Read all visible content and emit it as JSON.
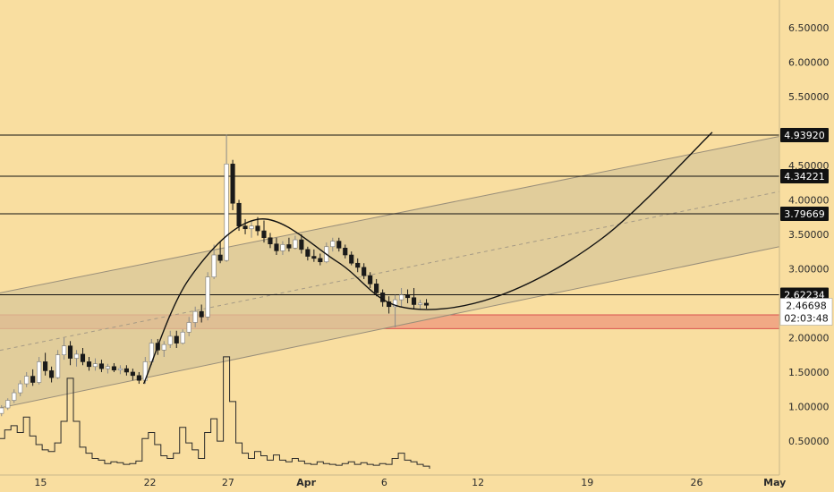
{
  "chart_data": {
    "type": "candlestick",
    "y_axis": {
      "ticks": [
        {
          "value": 0.5,
          "label": "0.50000"
        },
        {
          "value": 1.0,
          "label": "1.00000"
        },
        {
          "value": 1.5,
          "label": "1.50000"
        },
        {
          "value": 2.0,
          "label": "2.00000"
        },
        {
          "value": 3.0,
          "label": "3.00000"
        },
        {
          "value": 3.5,
          "label": "3.50000"
        },
        {
          "value": 4.0,
          "label": "4.00000"
        },
        {
          "value": 4.5,
          "label": "4.50000"
        },
        {
          "value": 5.5,
          "label": "5.50000"
        },
        {
          "value": 6.0,
          "label": "6.00000"
        },
        {
          "value": 6.5,
          "label": "6.50000"
        }
      ],
      "range": [
        0.0,
        6.9
      ],
      "position": "right"
    },
    "x_axis": {
      "ticks": [
        {
          "day": 15,
          "label": "15",
          "month_label": false
        },
        {
          "day": 22,
          "label": "22",
          "month_label": false
        },
        {
          "day": 27,
          "label": "27",
          "month_label": false
        },
        {
          "day": 32,
          "label": "Apr",
          "month_label": true
        },
        {
          "day": 37,
          "label": "6",
          "month_label": false
        },
        {
          "day": 43,
          "label": "12",
          "month_label": false
        },
        {
          "day": 50,
          "label": "19",
          "month_label": false
        },
        {
          "day": 57,
          "label": "26",
          "month_label": false
        },
        {
          "day": 62,
          "label": "May",
          "month_label": true
        }
      ],
      "range": [
        12.4,
        62.3
      ],
      "note": "day numbers counted from March 1"
    },
    "price_levels": [
      {
        "value": 4.9392,
        "label": "4.93920"
      },
      {
        "value": 4.34221,
        "label": "4.34221"
      },
      {
        "value": 3.79669,
        "label": "3.79669"
      },
      {
        "value": 2.62234,
        "label": "2.62234"
      }
    ],
    "last_price": {
      "value": 2.46698,
      "label": "2.46698",
      "countdown": "02:03:48"
    },
    "support_zone": {
      "from": 2.13,
      "to": 2.33,
      "color": "#f0a080"
    },
    "channel": {
      "upper": [
        [
          12.4,
          2.65
        ],
        [
          62.3,
          4.92
        ]
      ],
      "lower": [
        [
          12.4,
          0.98
        ],
        [
          62.3,
          3.32
        ]
      ],
      "fill": "#d8c79a"
    },
    "curve": [
      [
        21.6,
        1.33
      ],
      [
        24.5,
        2.85
      ],
      [
        29.0,
        3.72
      ],
      [
        34.0,
        3.1
      ],
      [
        38.0,
        2.45
      ],
      [
        44.0,
        2.58
      ],
      [
        51.0,
        3.45
      ],
      [
        58.0,
        4.98
      ]
    ],
    "candles": [
      [
        12.5,
        0.9,
        1.02,
        0.86,
        0.98
      ],
      [
        12.9,
        0.98,
        1.12,
        0.95,
        1.09
      ],
      [
        13.3,
        1.09,
        1.25,
        1.05,
        1.2
      ],
      [
        13.7,
        1.2,
        1.38,
        1.15,
        1.33
      ],
      [
        14.1,
        1.33,
        1.5,
        1.28,
        1.44
      ],
      [
        14.5,
        1.44,
        1.54,
        1.3,
        1.35
      ],
      [
        14.9,
        1.35,
        1.72,
        1.32,
        1.65
      ],
      [
        15.3,
        1.65,
        1.78,
        1.45,
        1.52
      ],
      [
        15.7,
        1.52,
        1.58,
        1.35,
        1.42
      ],
      [
        16.1,
        1.42,
        1.82,
        1.4,
        1.75
      ],
      [
        16.5,
        1.75,
        2.0,
        1.68,
        1.88
      ],
      [
        16.9,
        1.88,
        1.95,
        1.6,
        1.7
      ],
      [
        17.3,
        1.7,
        1.82,
        1.58,
        1.76
      ],
      [
        17.7,
        1.76,
        1.85,
        1.6,
        1.65
      ],
      [
        18.1,
        1.65,
        1.72,
        1.52,
        1.58
      ],
      [
        18.5,
        1.58,
        1.7,
        1.52,
        1.62
      ],
      [
        18.9,
        1.62,
        1.68,
        1.5,
        1.55
      ],
      [
        19.3,
        1.55,
        1.62,
        1.48,
        1.58
      ],
      [
        19.7,
        1.58,
        1.63,
        1.5,
        1.53
      ],
      [
        20.1,
        1.53,
        1.6,
        1.47,
        1.55
      ],
      [
        20.5,
        1.55,
        1.6,
        1.45,
        1.5
      ],
      [
        20.9,
        1.5,
        1.55,
        1.38,
        1.45
      ],
      [
        21.3,
        1.45,
        1.5,
        1.33,
        1.38
      ],
      [
        21.7,
        1.38,
        1.72,
        1.33,
        1.65
      ],
      [
        22.1,
        1.65,
        1.98,
        1.6,
        1.92
      ],
      [
        22.5,
        1.92,
        1.98,
        1.75,
        1.82
      ],
      [
        22.9,
        1.82,
        1.95,
        1.72,
        1.9
      ],
      [
        23.3,
        1.9,
        2.1,
        1.85,
        2.02
      ],
      [
        23.7,
        2.02,
        2.1,
        1.85,
        1.92
      ],
      [
        24.1,
        1.92,
        2.12,
        1.9,
        2.08
      ],
      [
        24.5,
        2.08,
        2.3,
        2.02,
        2.22
      ],
      [
        24.9,
        2.22,
        2.45,
        2.15,
        2.38
      ],
      [
        25.3,
        2.38,
        2.48,
        2.22,
        2.3
      ],
      [
        25.7,
        2.3,
        2.95,
        2.25,
        2.88
      ],
      [
        26.1,
        2.88,
        3.35,
        2.85,
        3.2
      ],
      [
        26.5,
        3.2,
        3.4,
        3.08,
        3.12
      ],
      [
        26.9,
        3.12,
        4.95,
        3.1,
        4.52
      ],
      [
        27.3,
        4.52,
        4.58,
        3.85,
        3.95
      ],
      [
        27.7,
        3.95,
        4.0,
        3.55,
        3.62
      ],
      [
        28.1,
        3.62,
        3.72,
        3.5,
        3.58
      ],
      [
        28.5,
        3.58,
        3.68,
        3.45,
        3.62
      ],
      [
        28.9,
        3.62,
        3.75,
        3.48,
        3.55
      ],
      [
        29.3,
        3.55,
        3.7,
        3.38,
        3.45
      ],
      [
        29.7,
        3.45,
        3.52,
        3.3,
        3.36
      ],
      [
        30.1,
        3.36,
        3.45,
        3.2,
        3.26
      ],
      [
        30.5,
        3.26,
        3.4,
        3.2,
        3.35
      ],
      [
        30.9,
        3.35,
        3.45,
        3.25,
        3.3
      ],
      [
        31.3,
        3.3,
        3.48,
        3.28,
        3.42
      ],
      [
        31.7,
        3.42,
        3.5,
        3.22,
        3.28
      ],
      [
        32.1,
        3.28,
        3.32,
        3.12,
        3.18
      ],
      [
        32.5,
        3.18,
        3.28,
        3.1,
        3.15
      ],
      [
        32.9,
        3.15,
        3.22,
        3.05,
        3.1
      ],
      [
        33.3,
        3.1,
        3.38,
        3.08,
        3.32
      ],
      [
        33.7,
        3.32,
        3.45,
        3.25,
        3.4
      ],
      [
        34.1,
        3.4,
        3.45,
        3.25,
        3.3
      ],
      [
        34.5,
        3.3,
        3.35,
        3.15,
        3.2
      ],
      [
        34.9,
        3.2,
        3.25,
        3.05,
        3.08
      ],
      [
        35.3,
        3.08,
        3.15,
        2.95,
        3.02
      ],
      [
        35.7,
        3.02,
        3.08,
        2.85,
        2.9
      ],
      [
        36.1,
        2.9,
        2.95,
        2.72,
        2.78
      ],
      [
        36.5,
        2.78,
        2.85,
        2.6,
        2.65
      ],
      [
        36.9,
        2.65,
        2.7,
        2.45,
        2.52
      ],
      [
        37.3,
        2.52,
        2.6,
        2.35,
        2.45
      ],
      [
        37.7,
        2.45,
        2.62,
        2.15,
        2.55
      ],
      [
        38.1,
        2.55,
        2.72,
        2.45,
        2.62
      ],
      [
        38.5,
        2.62,
        2.7,
        2.5,
        2.58
      ],
      [
        38.9,
        2.58,
        2.72,
        2.42,
        2.48
      ],
      [
        39.3,
        2.48,
        2.55,
        2.4,
        2.5
      ],
      [
        39.7,
        2.5,
        2.56,
        2.42,
        2.47
      ]
    ],
    "volumes": [
      [
        12.5,
        0.35
      ],
      [
        12.9,
        0.45
      ],
      [
        13.3,
        0.5
      ],
      [
        13.7,
        0.42
      ],
      [
        14.1,
        0.6
      ],
      [
        14.5,
        0.38
      ],
      [
        14.9,
        0.28
      ],
      [
        15.3,
        0.22
      ],
      [
        15.7,
        0.2
      ],
      [
        16.1,
        0.3
      ],
      [
        16.5,
        0.55
      ],
      [
        16.9,
        1.05
      ],
      [
        17.3,
        0.55
      ],
      [
        17.7,
        0.25
      ],
      [
        18.1,
        0.18
      ],
      [
        18.5,
        0.12
      ],
      [
        18.9,
        0.1
      ],
      [
        19.3,
        0.06
      ],
      [
        19.7,
        0.08
      ],
      [
        20.1,
        0.07
      ],
      [
        20.5,
        0.05
      ],
      [
        20.9,
        0.06
      ],
      [
        21.3,
        0.09
      ],
      [
        21.7,
        0.35
      ],
      [
        22.1,
        0.42
      ],
      [
        22.5,
        0.28
      ],
      [
        22.9,
        0.15
      ],
      [
        23.3,
        0.12
      ],
      [
        23.7,
        0.18
      ],
      [
        24.1,
        0.48
      ],
      [
        24.5,
        0.3
      ],
      [
        24.9,
        0.22
      ],
      [
        25.3,
        0.12
      ],
      [
        25.7,
        0.42
      ],
      [
        26.1,
        0.58
      ],
      [
        26.5,
        0.32
      ],
      [
        26.9,
        1.3
      ],
      [
        27.3,
        0.78
      ],
      [
        27.7,
        0.3
      ],
      [
        28.1,
        0.18
      ],
      [
        28.5,
        0.12
      ],
      [
        28.9,
        0.2
      ],
      [
        29.3,
        0.15
      ],
      [
        29.7,
        0.1
      ],
      [
        30.1,
        0.16
      ],
      [
        30.5,
        0.1
      ],
      [
        30.9,
        0.08
      ],
      [
        31.3,
        0.12
      ],
      [
        31.7,
        0.09
      ],
      [
        32.1,
        0.06
      ],
      [
        32.5,
        0.05
      ],
      [
        32.9,
        0.08
      ],
      [
        33.3,
        0.06
      ],
      [
        33.7,
        0.05
      ],
      [
        34.1,
        0.04
      ],
      [
        34.5,
        0.06
      ],
      [
        34.9,
        0.08
      ],
      [
        35.3,
        0.05
      ],
      [
        35.7,
        0.07
      ],
      [
        36.1,
        0.05
      ],
      [
        36.5,
        0.04
      ],
      [
        36.9,
        0.06
      ],
      [
        37.3,
        0.05
      ],
      [
        37.7,
        0.12
      ],
      [
        38.1,
        0.18
      ],
      [
        38.5,
        0.1
      ],
      [
        38.9,
        0.08
      ],
      [
        39.3,
        0.05
      ],
      [
        39.7,
        0.03
      ]
    ],
    "volume_scale_max": 1.35,
    "colors": {
      "background": "#f9dea0",
      "bull": "#ffffff",
      "bear": "#1a1a1a",
      "level_line": "#111111",
      "label_bg": "#111111"
    }
  }
}
